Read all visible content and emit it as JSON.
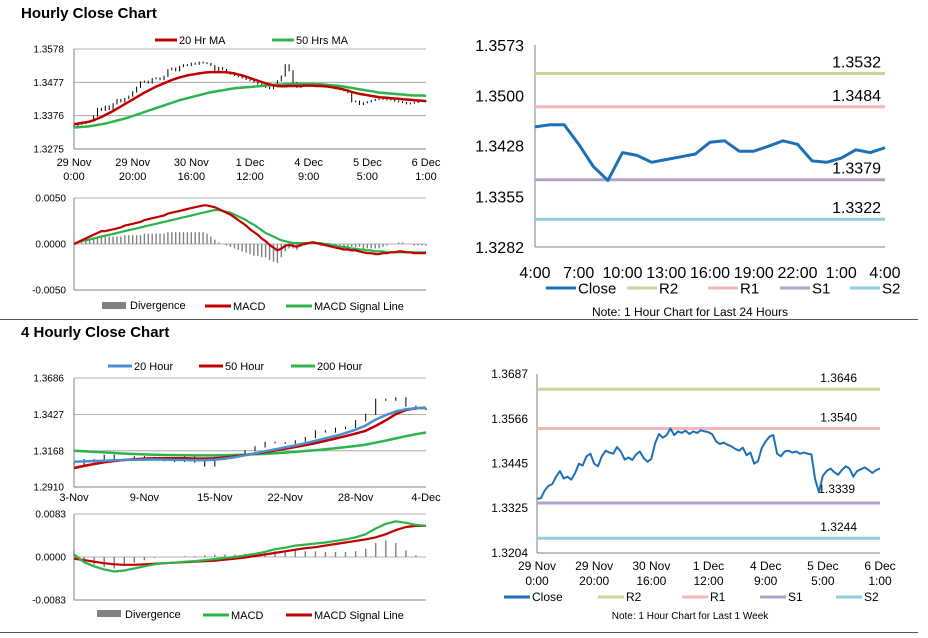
{
  "sections": {
    "hourly_title": "Hourly Close Chart",
    "four_hourly_title": "4 Hourly Close Chart"
  },
  "colors": {
    "ma_short": "#c00000",
    "ma_long": "#2cb34a",
    "ma_20_4h": "#4a8fd0",
    "close_line": "#1f6fb6",
    "r2": "#c3d69b",
    "r1": "#f2b8b8",
    "s1": "#b3a2c7",
    "s2": "#93cddd",
    "divergence": "#7f7f7f",
    "price_bars": "#000000"
  },
  "chart_data": [
    {
      "id": "hourly-price",
      "type": "line",
      "legend": [
        "20 Hr MA",
        "50 Hrs MA"
      ],
      "ylim": [
        1.3275,
        1.3578
      ],
      "ytick_labels": [
        "1.3578",
        "1.3477",
        "1.3376",
        "1.3275"
      ],
      "xtick_labels": [
        [
          "29 Nov",
          "0:00"
        ],
        [
          "29 Nov",
          "20:00"
        ],
        [
          "30 Nov",
          "16:00"
        ],
        [
          "1 Dec",
          "12:00"
        ],
        [
          "4 Dec",
          "9:00"
        ],
        [
          "5 Dec",
          "5:00"
        ],
        [
          "6 Dec",
          "1:00"
        ]
      ],
      "x_range": [
        0,
        90
      ],
      "close": [
        1.3345,
        1.335,
        1.3352,
        1.3356,
        1.336,
        1.3375,
        1.3398,
        1.3392,
        1.3405,
        1.3395,
        1.3412,
        1.3425,
        1.3418,
        1.3428,
        1.3435,
        1.3448,
        1.3462,
        1.3478,
        1.348,
        1.3475,
        1.3488,
        1.349,
        1.3485,
        1.3495,
        1.3515,
        1.352,
        1.3512,
        1.3525,
        1.353,
        1.3528,
        1.3535,
        1.3532,
        1.3538,
        1.3536,
        1.3534,
        1.3528,
        1.3512,
        1.3522,
        1.3516,
        1.3508,
        1.3502,
        1.3498,
        1.3494,
        1.349,
        1.3486,
        1.3482,
        1.3478,
        1.3472,
        1.3468,
        1.3462,
        1.3458,
        1.3464,
        1.3482,
        1.3496,
        1.353,
        1.3512,
        1.3476,
        1.3462,
        1.3468,
        1.3472,
        1.3466,
        1.347,
        1.3472,
        1.3468,
        1.347,
        1.3465,
        1.3462,
        1.3458,
        1.3455,
        1.3452,
        1.3446,
        1.3418,
        1.342,
        1.341,
        1.3415,
        1.3418,
        1.3422,
        1.3425,
        1.3426,
        1.3428,
        1.3424,
        1.3425,
        1.342,
        1.3418,
        1.3416,
        1.3412,
        1.3414,
        1.3416,
        1.342,
        1.342,
        1.342
      ],
      "ma_20": [
        1.335,
        1.3352,
        1.3354,
        1.3356,
        1.3358,
        1.3362,
        1.3367,
        1.3372,
        1.3378,
        1.3384,
        1.339,
        1.3397,
        1.3404,
        1.3411,
        1.3418,
        1.3425,
        1.3432,
        1.3439,
        1.3446,
        1.3452,
        1.3458,
        1.3464,
        1.3469,
        1.3474,
        1.3479,
        1.3484,
        1.3488,
        1.3492,
        1.3495,
        1.3498,
        1.35,
        1.3502,
        1.3504,
        1.3506,
        1.3507,
        1.3508,
        1.3508,
        1.3508,
        1.3508,
        1.3507,
        1.3506,
        1.3504,
        1.3501,
        1.3498,
        1.3494,
        1.349,
        1.3486,
        1.3482,
        1.3478,
        1.3474,
        1.3471,
        1.3468,
        1.3466,
        1.3465,
        1.3465,
        1.3466,
        1.3466,
        1.3466,
        1.3466,
        1.3467,
        1.3467,
        1.3467,
        1.3466,
        1.3466,
        1.3465,
        1.3464,
        1.3462,
        1.346,
        1.3458,
        1.3455,
        1.3452,
        1.3448,
        1.3445,
        1.3442,
        1.344,
        1.3438,
        1.3436,
        1.3434,
        1.3432,
        1.3431,
        1.343,
        1.3429,
        1.3428,
        1.3427,
        1.3426,
        1.3425,
        1.3424,
        1.3423,
        1.3422,
        1.3421,
        1.342
      ],
      "ma_50": [
        1.334,
        1.3341,
        1.3342,
        1.3343,
        1.3344,
        1.3346,
        1.3348,
        1.335,
        1.3352,
        1.3355,
        1.3358,
        1.3361,
        1.3364,
        1.3367,
        1.3371,
        1.3375,
        1.3379,
        1.3383,
        1.3387,
        1.3391,
        1.3395,
        1.3399,
        1.3403,
        1.3407,
        1.3411,
        1.3415,
        1.3419,
        1.3423,
        1.3426,
        1.3429,
        1.3432,
        1.3435,
        1.3438,
        1.3441,
        1.3444,
        1.3447,
        1.3449,
        1.3451,
        1.3453,
        1.3455,
        1.3457,
        1.3459,
        1.346,
        1.3461,
        1.3462,
        1.3463,
        1.3464,
        1.3465,
        1.3466,
        1.3467,
        1.3468,
        1.3469,
        1.347,
        1.347,
        1.3471,
        1.3471,
        1.3472,
        1.3472,
        1.3472,
        1.3472,
        1.3472,
        1.3472,
        1.3471,
        1.3471,
        1.347,
        1.3469,
        1.3468,
        1.3467,
        1.3466,
        1.3464,
        1.3462,
        1.346,
        1.3458,
        1.3456,
        1.3454,
        1.3452,
        1.345,
        1.3448,
        1.3446,
        1.3445,
        1.3444,
        1.3443,
        1.3442,
        1.3441,
        1.344,
        1.3439,
        1.3438,
        1.3437,
        1.3437,
        1.3437,
        1.3436
      ]
    },
    {
      "id": "hourly-macd",
      "type": "line",
      "legend": [
        "Divergence",
        "MACD",
        "MACD Signal Line"
      ],
      "ylim": [
        -0.005,
        0.005
      ],
      "ytick_labels": [
        "0.0050",
        "0.0000",
        "-0.0050"
      ],
      "x_range": [
        0,
        90
      ],
      "macd": [
        0,
        0.0002,
        0.0004,
        0.0006,
        0.0008,
        0.001,
        0.0012,
        0.0014,
        0.0014,
        0.0015,
        0.0016,
        0.0017,
        0.0018,
        0.002,
        0.0021,
        0.0022,
        0.0023,
        0.0024,
        0.0026,
        0.0027,
        0.0028,
        0.0029,
        0.003,
        0.0031,
        0.0033,
        0.0034,
        0.0035,
        0.0036,
        0.0037,
        0.0038,
        0.0039,
        0.004,
        0.0041,
        0.0042,
        0.0042,
        0.0041,
        0.004,
        0.0038,
        0.0036,
        0.0034,
        0.0032,
        0.0029,
        0.0026,
        0.0023,
        0.002,
        0.0016,
        0.0013,
        0.001,
        0.0006,
        0.0003,
        -0.0001,
        -0.0004,
        -0.0007,
        -0.0005,
        -0.0002,
        -0.0001,
        -0.0002,
        -0.0003,
        -0.0001,
        0,
        0.0001,
        0.0002,
        0.0001,
        0,
        -0.0001,
        -0.0002,
        -0.0003,
        -0.0004,
        -0.0005,
        -0.0006,
        -0.0006,
        -0.0007,
        -0.0007,
        -0.0008,
        -0.0009,
        -0.001,
        -0.001,
        -0.0011,
        -0.0011,
        -0.001,
        -0.001,
        -0.0009,
        -0.0009,
        -0.0008,
        -0.0008,
        -0.0009,
        -0.0009,
        -0.001,
        -0.001,
        -0.001,
        -0.001
      ],
      "signal": [
        0,
        0.0002,
        0.0003,
        0.0004,
        0.0005,
        0.0006,
        0.0007,
        0.0008,
        0.0009,
        0.001,
        0.0011,
        0.0012,
        0.0013,
        0.0014,
        0.0015,
        0.0016,
        0.0017,
        0.0018,
        0.0019,
        0.002,
        0.0021,
        0.0022,
        0.0023,
        0.0024,
        0.0025,
        0.0026,
        0.0027,
        0.0028,
        0.0029,
        0.003,
        0.0031,
        0.0032,
        0.0033,
        0.0034,
        0.0035,
        0.0036,
        0.0037,
        0.0037,
        0.0036,
        0.0035,
        0.0034,
        0.0032,
        0.003,
        0.0028,
        0.0026,
        0.0023,
        0.0021,
        0.0018,
        0.0015,
        0.0012,
        0.001,
        0.0008,
        0.0006,
        0.0004,
        0.0003,
        0.0002,
        0.0001,
        0.0001,
        0.0001,
        0.0001,
        0.0001,
        0.0001,
        0.0001,
        0.0001,
        0,
        0,
        -0.0001,
        -0.0002,
        -0.0003,
        -0.0003,
        -0.0004,
        -0.0005,
        -0.0005,
        -0.0006,
        -0.0006,
        -0.0007,
        -0.0007,
        -0.0008,
        -0.0008,
        -0.0008,
        -0.0009,
        -0.0009,
        -0.0009,
        -0.0009,
        -0.0009,
        -0.0009,
        -0.0009,
        -0.0009,
        -0.0009,
        -0.0009,
        -0.0009
      ]
    },
    {
      "id": "hourly-pivot",
      "type": "line",
      "ylim": [
        1.3282,
        1.3573
      ],
      "ytick_labels": [
        "1.3573",
        "1.3500",
        "1.3428",
        "1.3355",
        "1.3282"
      ],
      "xtick_labels": [
        "4:00",
        "7:00",
        "10:00",
        "13:00",
        "16:00",
        "19:00",
        "22:00",
        "1:00",
        "4:00"
      ],
      "x_range": [
        0,
        24
      ],
      "close": [
        1.3455,
        1.3458,
        1.3458,
        1.343,
        1.3398,
        1.3378,
        1.3418,
        1.3414,
        1.3404,
        1.3408,
        1.3412,
        1.3416,
        1.3433,
        1.3435,
        1.342,
        1.342,
        1.3427,
        1.3435,
        1.343,
        1.3406,
        1.3404,
        1.341,
        1.3422,
        1.3418,
        1.3425
      ],
      "levels": [
        {
          "name": "R2",
          "value": 1.3532,
          "label": "1.3532"
        },
        {
          "name": "R1",
          "value": 1.3484,
          "label": "1.3484"
        },
        {
          "name": "S1",
          "value": 1.3379,
          "label": "1.3379"
        },
        {
          "name": "S2",
          "value": 1.3322,
          "label": "1.3322"
        }
      ],
      "legend": [
        "Close",
        "R2",
        "R1",
        "S1",
        "S2"
      ],
      "note": "Note: 1 Hour Chart for Last 24 Hours"
    },
    {
      "id": "four-hourly-price",
      "type": "line",
      "legend": [
        "20 Hour",
        "50 Hour",
        "200 Hour"
      ],
      "ylim": [
        1.291,
        1.3686
      ],
      "ytick_labels": [
        "1.3686",
        "1.3427",
        "1.3168",
        "1.2910"
      ],
      "xtick_labels": [
        "3-Nov",
        "9-Nov",
        "15-Nov",
        "22-Nov",
        "28-Nov",
        "4-Dec"
      ],
      "x_range": [
        0,
        30
      ],
      "close": [
        1.3075,
        1.3105,
        1.309,
        1.3135,
        1.3108,
        1.31,
        1.3125,
        1.312,
        1.3115,
        1.3098,
        1.3092,
        1.3125,
        1.3088,
        1.306,
        1.312,
        1.3135,
        1.3142,
        1.3168,
        1.3195,
        1.3228,
        1.3225,
        1.3222,
        1.3238,
        1.3262,
        1.331,
        1.3302,
        1.3328,
        1.3335,
        1.3382,
        1.3428,
        1.3535,
        1.3528,
        1.3545,
        1.3485,
        1.3462,
        1.3468
      ],
      "ma_20": [
        1.309,
        1.3092,
        1.3095,
        1.3097,
        1.31,
        1.3102,
        1.3104,
        1.3105,
        1.3106,
        1.3105,
        1.3103,
        1.3102,
        1.31,
        1.31,
        1.3104,
        1.3112,
        1.3122,
        1.3136,
        1.315,
        1.3164,
        1.3178,
        1.3192,
        1.3206,
        1.3222,
        1.3238,
        1.3256,
        1.3274,
        1.3294,
        1.3318,
        1.3348,
        1.339,
        1.3422,
        1.3448,
        1.3464,
        1.347,
        1.3472
      ],
      "ma_50": [
        1.3045,
        1.306,
        1.3074,
        1.3086,
        1.3095,
        1.3102,
        1.3108,
        1.3112,
        1.3114,
        1.3115,
        1.3115,
        1.3114,
        1.3112,
        1.3112,
        1.3115,
        1.312,
        1.3128,
        1.3138,
        1.3148,
        1.3158,
        1.317,
        1.3182,
        1.3195,
        1.3208,
        1.3222,
        1.3238,
        1.3255,
        1.3272,
        1.329,
        1.331,
        1.3345,
        1.3385,
        1.3428,
        1.3458,
        1.347,
        1.3474
      ],
      "ma_200": [
        1.3168,
        1.3164,
        1.316,
        1.3156,
        1.3152,
        1.3148,
        1.3145,
        1.3142,
        1.314,
        1.3138,
        1.3137,
        1.3136,
        1.3135,
        1.3135,
        1.3135,
        1.3136,
        1.3138,
        1.314,
        1.3143,
        1.3146,
        1.315,
        1.3155,
        1.316,
        1.3166,
        1.3172,
        1.3179,
        1.3186,
        1.3194,
        1.3202,
        1.3212,
        1.3226,
        1.324,
        1.3256,
        1.3272,
        1.3286,
        1.3298
      ]
    },
    {
      "id": "four-hourly-macd",
      "type": "line",
      "legend": [
        "Divergence",
        "MACD",
        "MACD Signal Line"
      ],
      "ylim": [
        -0.0083,
        0.0083
      ],
      "ytick_labels": [
        "0.0083",
        "0.0000",
        "-0.0083"
      ],
      "x_range": [
        0,
        30
      ],
      "macd": [
        0.0005,
        -0.001,
        -0.0018,
        -0.0024,
        -0.0028,
        -0.0026,
        -0.0022,
        -0.0018,
        -0.0014,
        -0.0012,
        -0.0011,
        -0.0009,
        -0.0008,
        -0.0006,
        -0.0004,
        -0.0002,
        0,
        0.0003,
        0.0006,
        0.001,
        0.0015,
        0.0018,
        0.0022,
        0.0024,
        0.0026,
        0.0028,
        0.0031,
        0.0034,
        0.0038,
        0.0044,
        0.0055,
        0.0064,
        0.0069,
        0.0066,
        0.0062,
        0.006
      ],
      "signal": [
        -0.0003,
        -0.0006,
        -0.0009,
        -0.0012,
        -0.0014,
        -0.0015,
        -0.0015,
        -0.0014,
        -0.0013,
        -0.0012,
        -0.0011,
        -0.001,
        -0.0009,
        -0.0008,
        -0.0007,
        -0.0005,
        -0.0003,
        -0.0001,
        0.0002,
        0.0005,
        0.0008,
        0.0011,
        0.0014,
        0.0017,
        0.0019,
        0.0022,
        0.0025,
        0.0028,
        0.0031,
        0.0034,
        0.0038,
        0.0044,
        0.0052,
        0.0058,
        0.006,
        0.006
      ]
    },
    {
      "id": "weekly-pivot",
      "type": "line",
      "ylim": [
        1.3204,
        1.3687
      ],
      "ytick_labels": [
        "1.3687",
        "1.3566",
        "1.3445",
        "1.3325",
        "1.3204"
      ],
      "xtick_labels": [
        [
          "29 Nov",
          "0:00"
        ],
        [
          "29 Nov",
          "20:00"
        ],
        [
          "30 Nov",
          "16:00"
        ],
        [
          "1 Dec",
          "12:00"
        ],
        [
          "4 Dec",
          "9:00"
        ],
        [
          "5 Dec",
          "5:00"
        ],
        [
          "6 Dec",
          "1:00"
        ]
      ],
      "x_range": [
        0,
        90
      ],
      "close": [
        1.335,
        1.3352,
        1.3372,
        1.3385,
        1.339,
        1.341,
        1.3425,
        1.3405,
        1.341,
        1.3402,
        1.342,
        1.3445,
        1.344,
        1.3465,
        1.3472,
        1.3445,
        1.3438,
        1.3465,
        1.348,
        1.3475,
        1.3472,
        1.349,
        1.3478,
        1.3456,
        1.3462,
        1.3455,
        1.347,
        1.3478,
        1.346,
        1.345,
        1.3458,
        1.35,
        1.3525,
        1.3515,
        1.3522,
        1.354,
        1.3522,
        1.3532,
        1.3528,
        1.3534,
        1.3525,
        1.3532,
        1.3528,
        1.3535,
        1.3532,
        1.353,
        1.3524,
        1.3505,
        1.3498,
        1.3502,
        1.3496,
        1.3492,
        1.3485,
        1.348,
        1.3488,
        1.3468,
        1.3475,
        1.3445,
        1.3452,
        1.3488,
        1.3505,
        1.3518,
        1.3522,
        1.3472,
        1.3465,
        1.3478,
        1.348,
        1.3475,
        1.3478,
        1.3472,
        1.3475,
        1.3472,
        1.347,
        1.3402,
        1.3368,
        1.3412,
        1.3425,
        1.3432,
        1.3422,
        1.3415,
        1.3428,
        1.3438,
        1.3432,
        1.341,
        1.3425,
        1.343,
        1.3435,
        1.3428,
        1.342,
        1.3428,
        1.3432
      ],
      "levels": [
        {
          "name": "R2",
          "value": 1.3646,
          "label": "1.3646"
        },
        {
          "name": "R1",
          "value": 1.354,
          "label": "1.3540"
        },
        {
          "name": "S1",
          "value": 1.3339,
          "label": "1.3339"
        },
        {
          "name": "S2",
          "value": 1.3244,
          "label": "1.3244"
        }
      ],
      "legend": [
        "Close",
        "R2",
        "R1",
        "S1",
        "S2"
      ],
      "note": "Note: 1 Hour Chart for Last 1 Week"
    }
  ]
}
